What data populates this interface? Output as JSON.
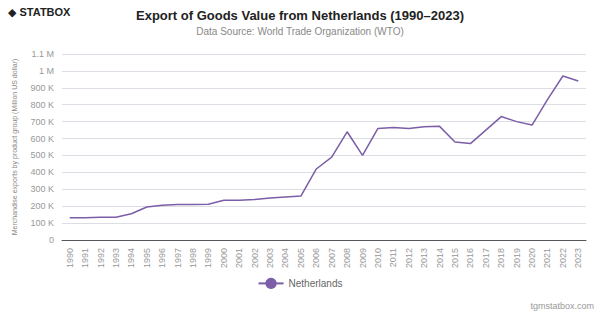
{
  "chart_data": {
    "type": "line",
    "title": "Export of Goods Value from Netherlands (1990–2023)",
    "subtitle": "Data Source: World Trade Organization (WTO)",
    "ylabel": "Merchandise exports by product group (Million US dollar)",
    "annotations": [
      "◆ STATBOX",
      "tgmstatbox.com"
    ],
    "categories": [
      "1990",
      "1991",
      "1992",
      "1993",
      "1994",
      "1995",
      "1996",
      "1997",
      "1998",
      "1999",
      "2000",
      "2001",
      "2002",
      "2003",
      "2004",
      "2005",
      "2006",
      "2007",
      "2008",
      "2009",
      "2010",
      "2011",
      "2012",
      "2013",
      "2014",
      "2015",
      "2016",
      "2017",
      "2018",
      "2019",
      "2020",
      "2021",
      "2022",
      "2023"
    ],
    "series": [
      {
        "name": "Netherlands",
        "color": "#7b5ea7",
        "values": [
          131000,
          132000,
          134000,
          134000,
          155000,
          195000,
          205000,
          210000,
          210000,
          212000,
          235000,
          235000,
          240000,
          248000,
          255000,
          260000,
          420000,
          490000,
          640000,
          500000,
          660000,
          665000,
          660000,
          670000,
          672000,
          580000,
          570000,
          650000,
          730000,
          700000,
          680000,
          830000,
          970000,
          940000
        ]
      }
    ],
    "ylim": [
      0,
      1100000
    ],
    "yticks": [
      0,
      {
        "value": 100000,
        "label": "100 K"
      },
      {
        "value": 200000,
        "label": "200 K"
      },
      {
        "value": 300000,
        "label": "300 K"
      },
      {
        "value": 400000,
        "label": "400 K"
      },
      {
        "value": 500000,
        "label": "500 K"
      },
      {
        "value": 600000,
        "label": "600 K"
      },
      {
        "value": 700000,
        "label": "700 K"
      },
      {
        "value": 800000,
        "label": "800 K"
      },
      {
        "value": 900000,
        "label": "900 K"
      },
      {
        "value": 1000000,
        "label": "1 M"
      },
      {
        "value": 1100000,
        "label": "1.1 M"
      }
    ],
    "grid": true,
    "legend": "bottom"
  }
}
